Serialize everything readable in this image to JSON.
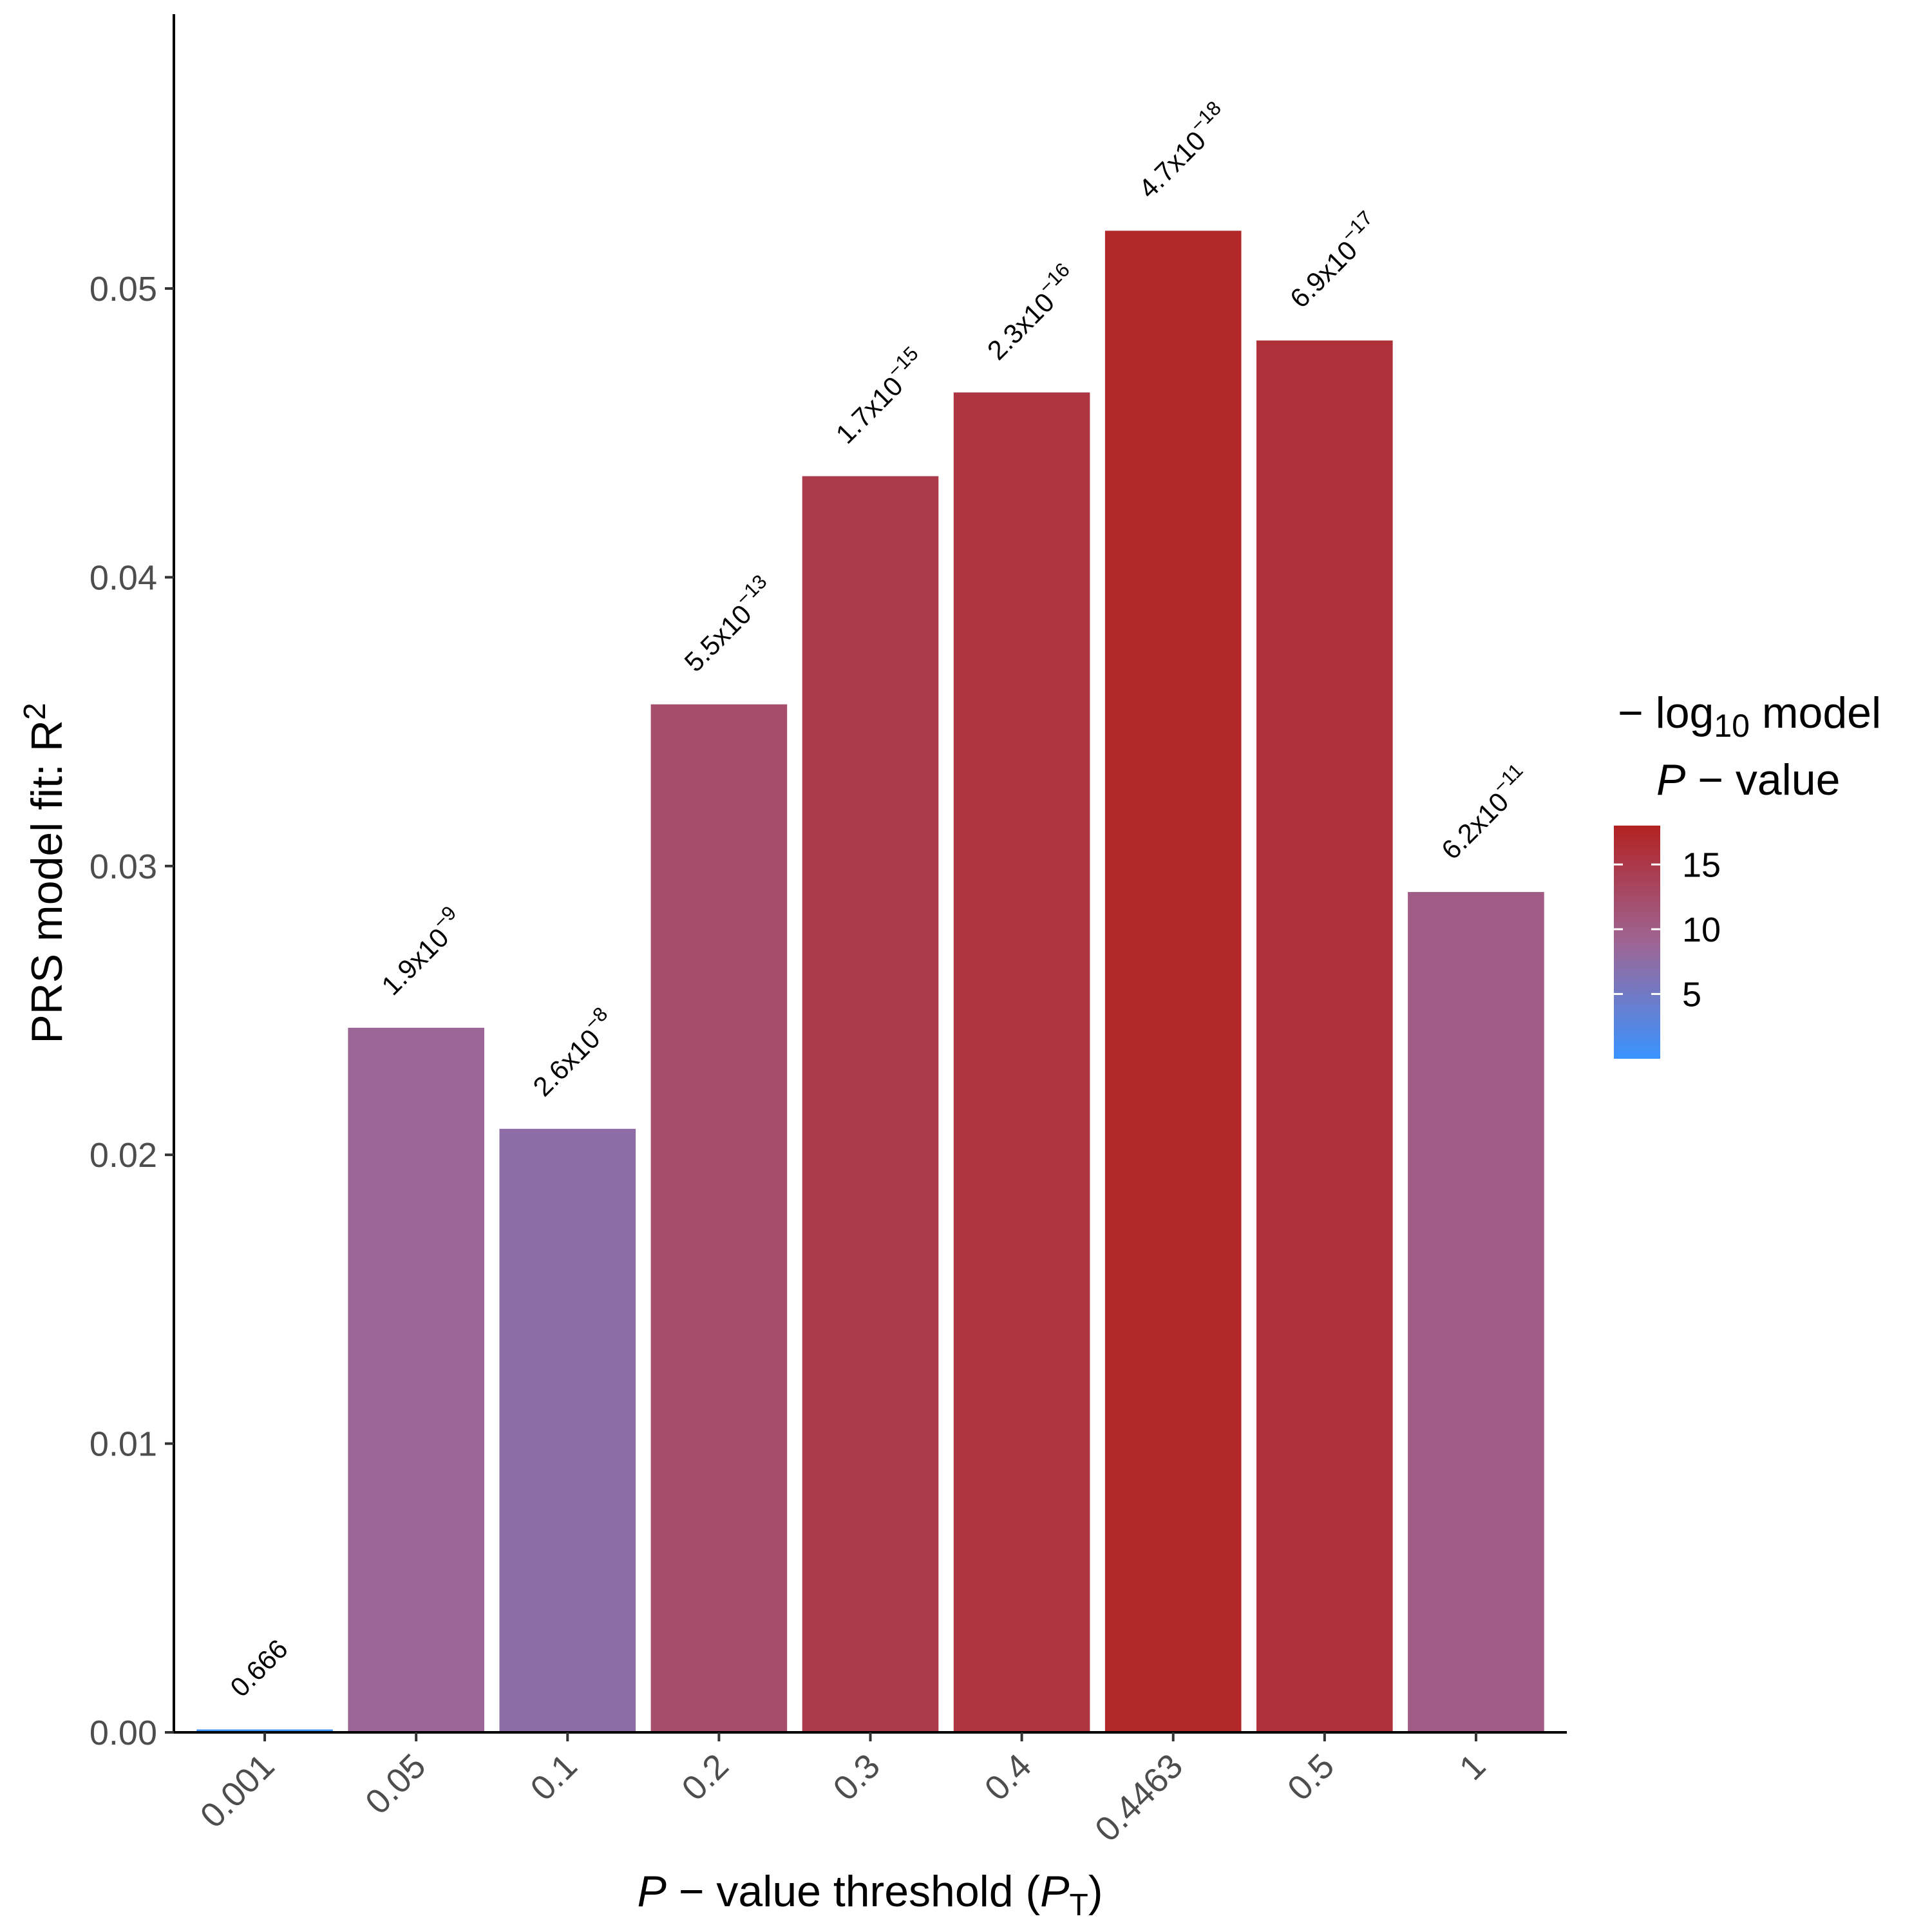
{
  "chart_data": {
    "type": "bar",
    "categories": [
      "0.001",
      "0.05",
      "0.1",
      "0.2",
      "0.3",
      "0.4",
      "0.4463",
      "0.5",
      "1"
    ],
    "values": [
      0.0001,
      0.0244,
      0.0209,
      0.0356,
      0.0435,
      0.0464,
      0.052,
      0.0482,
      0.0291
    ],
    "neg_log10_p": [
      0.18,
      8.72,
      7.59,
      12.26,
      14.77,
      15.64,
      17.33,
      16.16,
      10.21
    ],
    "bar_labels": [
      {
        "mantissa": "0.666",
        "exponent": ""
      },
      {
        "mantissa": "1.9x10",
        "exponent": "−9"
      },
      {
        "mantissa": "2.6x10",
        "exponent": "−8"
      },
      {
        "mantissa": "5.5x10",
        "exponent": "−13"
      },
      {
        "mantissa": "1.7x10",
        "exponent": "−15"
      },
      {
        "mantissa": "2.3x10",
        "exponent": "−16"
      },
      {
        "mantissa": "4.7x10",
        "exponent": "−18"
      },
      {
        "mantissa": "6.9x10",
        "exponent": "−17"
      },
      {
        "mantissa": "6.2x10",
        "exponent": "−11"
      }
    ],
    "ylim": [
      0,
      0.0595
    ],
    "yticks": [
      0,
      0.01,
      0.02,
      0.03,
      0.04,
      0.05
    ],
    "ytick_labels": [
      "0.00",
      "0.01",
      "0.02",
      "0.03",
      "0.04",
      "0.05"
    ],
    "xlabel": {
      "italic": "P",
      "rest": " − value threshold (",
      "italic2": "P",
      "sub": "T",
      "end": ")"
    },
    "ylabel": {
      "text": "PRS model fit:  R",
      "sup": "2"
    },
    "legend": {
      "title_line1_a": "− log",
      "title_line1_sub": "10",
      "title_line1_b": " model",
      "title_line2_italic": "P",
      "title_line2_rest": " − value",
      "range": [
        0,
        18
      ],
      "ticks": [
        5,
        10,
        15
      ],
      "tick_labels": [
        "5",
        "10",
        "15"
      ],
      "position": "right"
    },
    "colors": {
      "low": "#3a93ff",
      "mid": "#9e6594",
      "high": "#b22222",
      "axis": "#000000"
    }
  }
}
